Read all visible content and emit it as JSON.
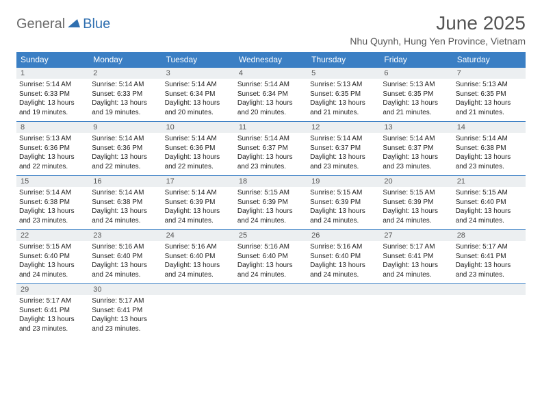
{
  "logo": {
    "general": "General",
    "blue": "Blue"
  },
  "title": "June 2025",
  "location": "Nhu Quynh, Hung Yen Province, Vietnam",
  "colors": {
    "header_bg": "#3b7fc4",
    "header_text": "#ffffff",
    "border": "#3b7fc4",
    "daynum_bg": "#eceff1",
    "body_text": "#222222",
    "title_text": "#555555",
    "logo_gray": "#6a6a6a",
    "logo_blue": "#2f6fb0"
  },
  "day_headers": [
    "Sunday",
    "Monday",
    "Tuesday",
    "Wednesday",
    "Thursday",
    "Friday",
    "Saturday"
  ],
  "weeks": [
    [
      {
        "n": "1",
        "sr": "Sunrise: 5:14 AM",
        "ss": "Sunset: 6:33 PM",
        "d1": "Daylight: 13 hours",
        "d2": "and 19 minutes."
      },
      {
        "n": "2",
        "sr": "Sunrise: 5:14 AM",
        "ss": "Sunset: 6:33 PM",
        "d1": "Daylight: 13 hours",
        "d2": "and 19 minutes."
      },
      {
        "n": "3",
        "sr": "Sunrise: 5:14 AM",
        "ss": "Sunset: 6:34 PM",
        "d1": "Daylight: 13 hours",
        "d2": "and 20 minutes."
      },
      {
        "n": "4",
        "sr": "Sunrise: 5:14 AM",
        "ss": "Sunset: 6:34 PM",
        "d1": "Daylight: 13 hours",
        "d2": "and 20 minutes."
      },
      {
        "n": "5",
        "sr": "Sunrise: 5:13 AM",
        "ss": "Sunset: 6:35 PM",
        "d1": "Daylight: 13 hours",
        "d2": "and 21 minutes."
      },
      {
        "n": "6",
        "sr": "Sunrise: 5:13 AM",
        "ss": "Sunset: 6:35 PM",
        "d1": "Daylight: 13 hours",
        "d2": "and 21 minutes."
      },
      {
        "n": "7",
        "sr": "Sunrise: 5:13 AM",
        "ss": "Sunset: 6:35 PM",
        "d1": "Daylight: 13 hours",
        "d2": "and 21 minutes."
      }
    ],
    [
      {
        "n": "8",
        "sr": "Sunrise: 5:13 AM",
        "ss": "Sunset: 6:36 PM",
        "d1": "Daylight: 13 hours",
        "d2": "and 22 minutes."
      },
      {
        "n": "9",
        "sr": "Sunrise: 5:14 AM",
        "ss": "Sunset: 6:36 PM",
        "d1": "Daylight: 13 hours",
        "d2": "and 22 minutes."
      },
      {
        "n": "10",
        "sr": "Sunrise: 5:14 AM",
        "ss": "Sunset: 6:36 PM",
        "d1": "Daylight: 13 hours",
        "d2": "and 22 minutes."
      },
      {
        "n": "11",
        "sr": "Sunrise: 5:14 AM",
        "ss": "Sunset: 6:37 PM",
        "d1": "Daylight: 13 hours",
        "d2": "and 23 minutes."
      },
      {
        "n": "12",
        "sr": "Sunrise: 5:14 AM",
        "ss": "Sunset: 6:37 PM",
        "d1": "Daylight: 13 hours",
        "d2": "and 23 minutes."
      },
      {
        "n": "13",
        "sr": "Sunrise: 5:14 AM",
        "ss": "Sunset: 6:37 PM",
        "d1": "Daylight: 13 hours",
        "d2": "and 23 minutes."
      },
      {
        "n": "14",
        "sr": "Sunrise: 5:14 AM",
        "ss": "Sunset: 6:38 PM",
        "d1": "Daylight: 13 hours",
        "d2": "and 23 minutes."
      }
    ],
    [
      {
        "n": "15",
        "sr": "Sunrise: 5:14 AM",
        "ss": "Sunset: 6:38 PM",
        "d1": "Daylight: 13 hours",
        "d2": "and 23 minutes."
      },
      {
        "n": "16",
        "sr": "Sunrise: 5:14 AM",
        "ss": "Sunset: 6:38 PM",
        "d1": "Daylight: 13 hours",
        "d2": "and 24 minutes."
      },
      {
        "n": "17",
        "sr": "Sunrise: 5:14 AM",
        "ss": "Sunset: 6:39 PM",
        "d1": "Daylight: 13 hours",
        "d2": "and 24 minutes."
      },
      {
        "n": "18",
        "sr": "Sunrise: 5:15 AM",
        "ss": "Sunset: 6:39 PM",
        "d1": "Daylight: 13 hours",
        "d2": "and 24 minutes."
      },
      {
        "n": "19",
        "sr": "Sunrise: 5:15 AM",
        "ss": "Sunset: 6:39 PM",
        "d1": "Daylight: 13 hours",
        "d2": "and 24 minutes."
      },
      {
        "n": "20",
        "sr": "Sunrise: 5:15 AM",
        "ss": "Sunset: 6:39 PM",
        "d1": "Daylight: 13 hours",
        "d2": "and 24 minutes."
      },
      {
        "n": "21",
        "sr": "Sunrise: 5:15 AM",
        "ss": "Sunset: 6:40 PM",
        "d1": "Daylight: 13 hours",
        "d2": "and 24 minutes."
      }
    ],
    [
      {
        "n": "22",
        "sr": "Sunrise: 5:15 AM",
        "ss": "Sunset: 6:40 PM",
        "d1": "Daylight: 13 hours",
        "d2": "and 24 minutes."
      },
      {
        "n": "23",
        "sr": "Sunrise: 5:16 AM",
        "ss": "Sunset: 6:40 PM",
        "d1": "Daylight: 13 hours",
        "d2": "and 24 minutes."
      },
      {
        "n": "24",
        "sr": "Sunrise: 5:16 AM",
        "ss": "Sunset: 6:40 PM",
        "d1": "Daylight: 13 hours",
        "d2": "and 24 minutes."
      },
      {
        "n": "25",
        "sr": "Sunrise: 5:16 AM",
        "ss": "Sunset: 6:40 PM",
        "d1": "Daylight: 13 hours",
        "d2": "and 24 minutes."
      },
      {
        "n": "26",
        "sr": "Sunrise: 5:16 AM",
        "ss": "Sunset: 6:40 PM",
        "d1": "Daylight: 13 hours",
        "d2": "and 24 minutes."
      },
      {
        "n": "27",
        "sr": "Sunrise: 5:17 AM",
        "ss": "Sunset: 6:41 PM",
        "d1": "Daylight: 13 hours",
        "d2": "and 24 minutes."
      },
      {
        "n": "28",
        "sr": "Sunrise: 5:17 AM",
        "ss": "Sunset: 6:41 PM",
        "d1": "Daylight: 13 hours",
        "d2": "and 23 minutes."
      }
    ],
    [
      {
        "n": "29",
        "sr": "Sunrise: 5:17 AM",
        "ss": "Sunset: 6:41 PM",
        "d1": "Daylight: 13 hours",
        "d2": "and 23 minutes."
      },
      {
        "n": "30",
        "sr": "Sunrise: 5:17 AM",
        "ss": "Sunset: 6:41 PM",
        "d1": "Daylight: 13 hours",
        "d2": "and 23 minutes."
      },
      null,
      null,
      null,
      null,
      null
    ]
  ]
}
